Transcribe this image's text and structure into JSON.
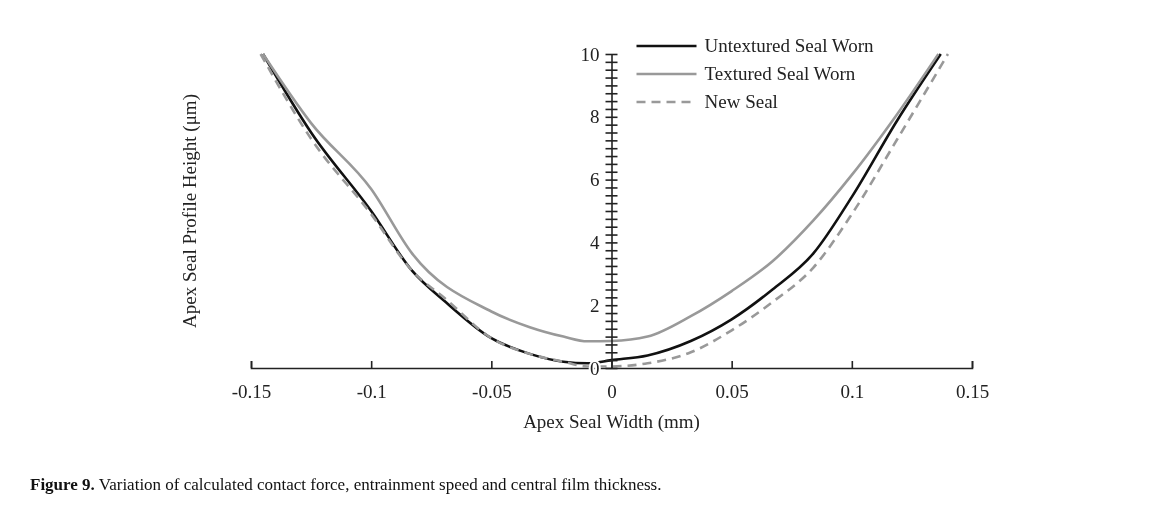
{
  "chart_data": {
    "type": "line",
    "xlabel": "Apex Seal Width (mm)",
    "ylabel": "Apex Seal Profile Height (μm)",
    "annotations": [
      "Figure 9. Variation of calculated contact force, entrainment speed and central film thickness."
    ],
    "xlim": [
      -0.15,
      0.15
    ],
    "xticks": [
      -0.15,
      -0.1,
      -0.05,
      0,
      0.05,
      0.1,
      0.15
    ],
    "ylim": [
      0,
      10
    ],
    "yticks": [
      0,
      {
        "value": 0.25,
        "label": null
      },
      {
        "value": 0.5,
        "label": null
      },
      {
        "value": 0.75,
        "label": null
      },
      {
        "value": 1,
        "label": null
      },
      {
        "value": 1.25,
        "label": null
      },
      {
        "value": 1.5,
        "label": null
      },
      {
        "value": 1.75,
        "label": null
      },
      2,
      {
        "value": 2.25,
        "label": null
      },
      {
        "value": 2.5,
        "label": null
      },
      {
        "value": 2.75,
        "label": null
      },
      {
        "value": 3,
        "label": null
      },
      {
        "value": 3.25,
        "label": null
      },
      {
        "value": 3.5,
        "label": null
      },
      {
        "value": 3.75,
        "label": null
      },
      4,
      {
        "value": 4.25,
        "label": null
      },
      {
        "value": 4.5,
        "label": null
      },
      {
        "value": 4.75,
        "label": null
      },
      {
        "value": 5,
        "label": null
      },
      {
        "value": 5.25,
        "label": null
      },
      {
        "value": 5.5,
        "label": null
      },
      {
        "value": 5.75,
        "label": null
      },
      6,
      {
        "value": 6.25,
        "label": null
      },
      {
        "value": 6.5,
        "label": null
      },
      {
        "value": 6.75,
        "label": null
      },
      {
        "value": 7,
        "label": null
      },
      {
        "value": 7.25,
        "label": null
      },
      {
        "value": 7.5,
        "label": null
      },
      {
        "value": 7.75,
        "label": null
      },
      8,
      {
        "value": 8.25,
        "label": null
      },
      {
        "value": 8.5,
        "label": null
      },
      {
        "value": 8.75,
        "label": null
      },
      {
        "value": 9,
        "label": null
      },
      {
        "value": 9.25,
        "label": null
      },
      {
        "value": 9.5,
        "label": null
      },
      {
        "value": 9.75,
        "label": null
      },
      10
    ],
    "grid": false,
    "legend": "top right",
    "marker": "none",
    "series": [
      {
        "name": "Untextured Seal Worn",
        "color": "#111111",
        "line_style": "solid",
        "x": [
          -0.145,
          -0.125,
          -0.1,
          -0.083,
          -0.069,
          -0.05,
          -0.034,
          -0.02,
          -0.01,
          0,
          0.015,
          0.033,
          0.05,
          0.067,
          0.084,
          0.1,
          0.119,
          0.137
        ],
        "values": [
          10,
          7.5,
          5.0,
          3.1,
          2.1,
          0.95,
          0.45,
          0.2,
          0.15,
          0.25,
          0.4,
          0.86,
          1.55,
          2.5,
          3.65,
          5.45,
          7.9,
          10
        ]
      },
      {
        "name": "Textured Seal Worn",
        "color": "#999999",
        "line_style": "solid",
        "x": [
          -0.145,
          -0.125,
          -0.1,
          -0.083,
          -0.05,
          -0.034,
          -0.02,
          -0.01,
          0,
          0.015,
          0.033,
          0.05,
          0.067,
          0.084,
          0.1,
          0.119,
          0.136
        ],
        "values": [
          10,
          7.8,
          5.7,
          3.65,
          1.8,
          1.3,
          1.0,
          0.85,
          0.86,
          1.0,
          1.65,
          2.45,
          3.4,
          4.7,
          6.15,
          8.1,
          10
        ]
      },
      {
        "name": "New Seal",
        "color": "#999999",
        "line_style": "dashed",
        "x": [
          -0.146,
          -0.125,
          -0.1,
          -0.083,
          -0.069,
          -0.05,
          -0.034,
          -0.02,
          -0.01,
          0,
          0.015,
          0.033,
          0.05,
          0.067,
          0.084,
          0.1,
          0.119,
          0.14
        ],
        "values": [
          10,
          7.3,
          4.9,
          3.1,
          2.2,
          0.95,
          0.45,
          0.2,
          0.05,
          0.05,
          0.15,
          0.5,
          1.2,
          2.1,
          3.2,
          4.9,
          7.3,
          10
        ]
      }
    ]
  }
}
